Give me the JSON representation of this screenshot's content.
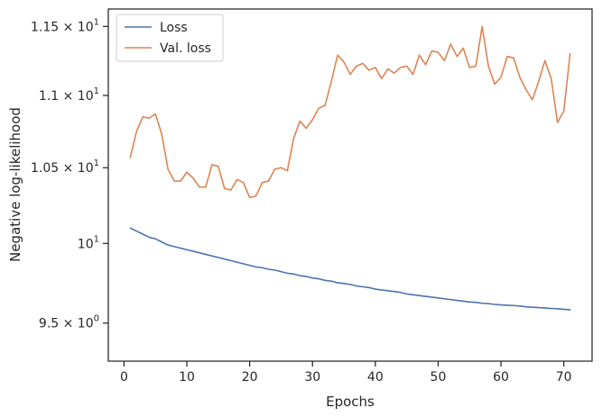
{
  "chart_data": {
    "type": "line",
    "xlabel": "Epochs",
    "ylabel": "Negative log-likelihood",
    "y_scale": "log",
    "xlim": [
      -2.5,
      74.5
    ],
    "ylim": [
      9.27,
      11.63
    ],
    "x_ticks": [
      0,
      10,
      20,
      30,
      40,
      50,
      60,
      70
    ],
    "x_tick_labels": [
      "0",
      "10",
      "20",
      "30",
      "40",
      "50",
      "60",
      "70"
    ],
    "y_ticks": [
      9.5,
      10,
      10.5,
      11,
      11.5
    ],
    "y_tick_labels": [
      {
        "mantissa": "9.5",
        "times": " × ",
        "base": "10",
        "exp": "0"
      },
      {
        "mantissa": "",
        "times": "",
        "base": "10",
        "exp": "1"
      },
      {
        "mantissa": "1.05",
        "times": " × ",
        "base": "10",
        "exp": "1"
      },
      {
        "mantissa": "1.1",
        "times": " × ",
        "base": "10",
        "exp": "1"
      },
      {
        "mantissa": "1.15",
        "times": " × ",
        "base": "10",
        "exp": "1"
      }
    ],
    "grid": false,
    "legend_position": "top-left",
    "x": [
      1,
      2,
      3,
      4,
      5,
      6,
      7,
      8,
      9,
      10,
      11,
      12,
      13,
      14,
      15,
      16,
      17,
      18,
      19,
      20,
      21,
      22,
      23,
      24,
      25,
      26,
      27,
      28,
      29,
      30,
      31,
      32,
      33,
      34,
      35,
      36,
      37,
      38,
      39,
      40,
      41,
      42,
      43,
      44,
      45,
      46,
      47,
      48,
      49,
      50,
      51,
      52,
      53,
      54,
      55,
      56,
      57,
      58,
      59,
      60,
      61,
      62,
      63,
      64,
      65,
      66,
      67,
      68,
      69,
      70,
      71
    ],
    "series": [
      {
        "name": "Loss",
        "color": "#4c72b0",
        "values": [
          10.1,
          10.08,
          10.06,
          10.04,
          10.03,
          10.01,
          9.99,
          9.98,
          9.97,
          9.96,
          9.95,
          9.94,
          9.93,
          9.92,
          9.91,
          9.9,
          9.89,
          9.88,
          9.87,
          9.86,
          9.85,
          9.845,
          9.835,
          9.83,
          9.82,
          9.81,
          9.805,
          9.795,
          9.79,
          9.78,
          9.775,
          9.765,
          9.76,
          9.75,
          9.745,
          9.74,
          9.73,
          9.725,
          9.72,
          9.71,
          9.705,
          9.7,
          9.695,
          9.69,
          9.68,
          9.675,
          9.67,
          9.665,
          9.66,
          9.655,
          9.65,
          9.645,
          9.64,
          9.635,
          9.63,
          9.628,
          9.622,
          9.62,
          9.615,
          9.612,
          9.61,
          9.608,
          9.605,
          9.6,
          9.598,
          9.595,
          9.593,
          9.59,
          9.588,
          9.585,
          9.582
        ]
      },
      {
        "name": "Val. loss",
        "color": "#dd8452",
        "values": [
          10.57,
          10.75,
          10.85,
          10.84,
          10.87,
          10.73,
          10.49,
          10.41,
          10.41,
          10.47,
          10.43,
          10.37,
          10.37,
          10.52,
          10.51,
          10.36,
          10.35,
          10.42,
          10.4,
          10.3,
          10.31,
          10.4,
          10.41,
          10.49,
          10.5,
          10.48,
          10.7,
          10.82,
          10.77,
          10.83,
          10.91,
          10.93,
          11.1,
          11.29,
          11.24,
          11.15,
          11.21,
          11.23,
          11.18,
          11.2,
          11.12,
          11.19,
          11.16,
          11.2,
          11.21,
          11.15,
          11.29,
          11.22,
          11.32,
          11.31,
          11.25,
          11.37,
          11.28,
          11.34,
          11.2,
          11.21,
          11.5,
          11.21,
          11.08,
          11.13,
          11.28,
          11.27,
          11.13,
          11.04,
          10.97,
          11.1,
          11.25,
          11.12,
          10.81,
          10.89,
          11.3
        ]
      }
    ]
  }
}
